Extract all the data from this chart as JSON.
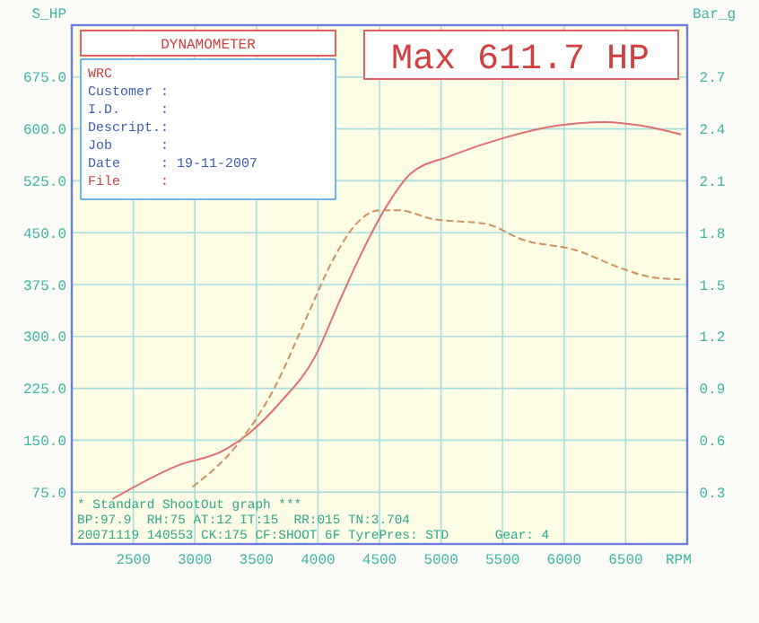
{
  "chart_data": {
    "type": "line",
    "xlabel": "RPM",
    "ylabel": "S_HP",
    "y2label": "Bar_g",
    "xlim": [
      2000,
      7000
    ],
    "xticks": [
      2500,
      3000,
      3500,
      4000,
      4500,
      5000,
      5500,
      6000,
      6500
    ],
    "ylim": [
      0,
      750
    ],
    "yticks": [
      {
        "value": 75,
        "label": "75.0"
      },
      {
        "value": 150,
        "label": "150.0"
      },
      {
        "value": 225,
        "label": "225.0"
      },
      {
        "value": 300,
        "label": "300.0"
      },
      {
        "value": 375,
        "label": "375.0"
      },
      {
        "value": 450,
        "label": "450.0"
      },
      {
        "value": 525,
        "label": "525.0"
      },
      {
        "value": 600,
        "label": "600.0"
      },
      {
        "value": 675,
        "label": "675.0"
      }
    ],
    "y2lim": [
      0,
      3
    ],
    "y2ticks": [
      {
        "value": 0.3,
        "label": "0.3"
      },
      {
        "value": 0.6,
        "label": "0.6"
      },
      {
        "value": 0.9,
        "label": "0.9"
      },
      {
        "value": 1.2,
        "label": "1.2"
      },
      {
        "value": 1.5,
        "label": "1.5"
      },
      {
        "value": 1.8,
        "label": "1.8"
      },
      {
        "value": 2.1,
        "label": "2.1"
      },
      {
        "value": 2.4,
        "label": "2.4"
      },
      {
        "value": 2.7,
        "label": "2.7"
      }
    ],
    "grid": true,
    "series": [
      {
        "color": "#e07070",
        "line_style": "solid",
        "x": [
          2330,
          2870,
          3220,
          3440,
          3690,
          3980,
          4170,
          4350,
          4560,
          4750,
          5080,
          5510,
          5950,
          6330,
          6620,
          6950
        ],
        "values": [
          65,
          114,
          134,
          160,
          204,
          272,
          349,
          419,
          489,
          535,
          561,
          587,
          605,
          610,
          605,
          592
        ]
      },
      {
        "color": "#d09060",
        "line_style": "dashed",
        "axis": "y2",
        "x": [
          2980,
          3340,
          3630,
          3920,
          4120,
          4310,
          4500,
          4650,
          4930,
          5370,
          5660,
          6090,
          6480,
          6730,
          6940
        ],
        "values": [
          0.33,
          0.57,
          0.88,
          1.33,
          1.64,
          1.85,
          1.93,
          1.93,
          1.88,
          1.85,
          1.76,
          1.7,
          1.59,
          1.54,
          1.53
        ]
      }
    ],
    "annotations": [
      "DYNAMOMETER",
      "Max 611.7 HP",
      "WRC",
      "Customer :",
      "I.D.     :",
      "Descript.:",
      "Job      :",
      "Date     : 19-11-2007",
      "File     :",
      "* Standard ShootOut graph ***",
      "BP:97.9  RH:75 AT:12 IT:15  RR:015 TN:3.704",
      "20071119 140553 CK:175 CF:SHOOT 6F TyrePres: STD      Gear: 4"
    ]
  }
}
